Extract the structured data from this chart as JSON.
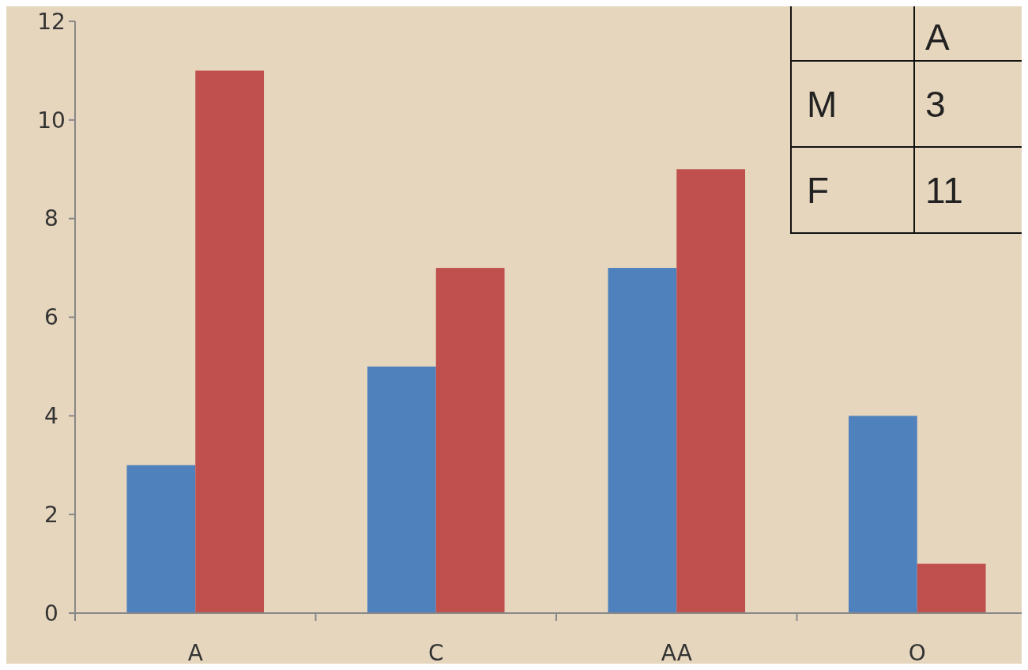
{
  "chart_data": {
    "type": "bar",
    "categories": [
      "A",
      "C",
      "AA",
      "O"
    ],
    "series": [
      {
        "color": "#4f81bd",
        "values": [
          3,
          5,
          7,
          4
        ]
      },
      {
        "color": "#c0504d",
        "values": [
          11,
          7,
          9,
          1
        ]
      }
    ],
    "annotations": [
      "A",
      "M",
      "3",
      "F",
      "11"
    ],
    "ylim": [
      0,
      12
    ],
    "yticks": [
      0,
      2,
      4,
      6,
      8,
      10,
      12
    ],
    "grid": false
  }
}
